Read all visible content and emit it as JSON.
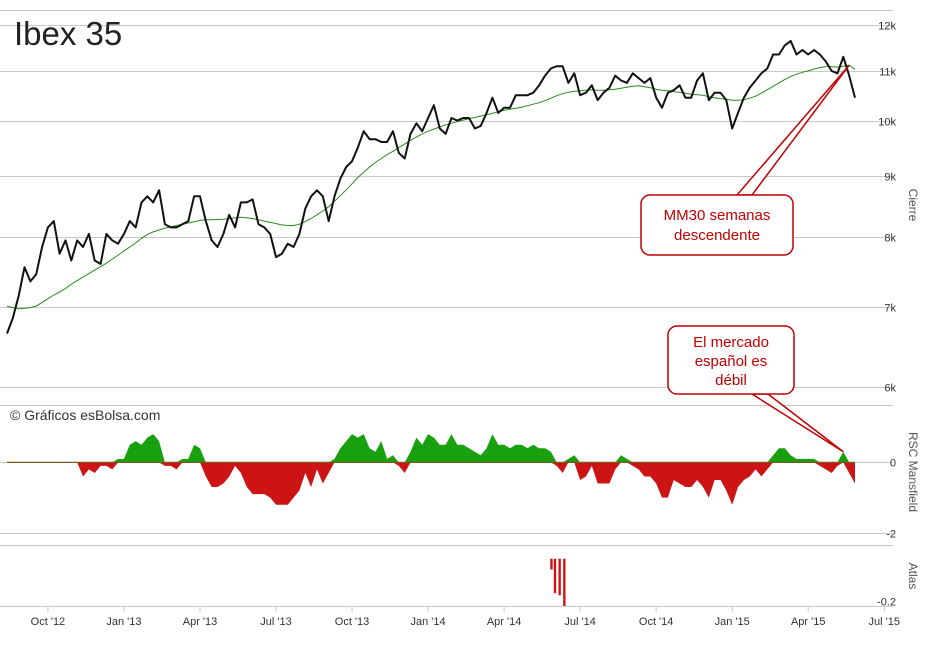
{
  "title": "Ibex 35",
  "credit": "© Gráficos esBolsa.com",
  "colors": {
    "price": "#111111",
    "ma": "#2a8a1e",
    "positive": "#19a00f",
    "negative": "#cc1414",
    "atlas": "#cc1414",
    "grid": "#c8c8c8",
    "annotation": "#c00000",
    "axis_text": "#555555"
  },
  "annotations": [
    {
      "text_lines": [
        "MM30 semanas",
        "descendente"
      ]
    },
    {
      "text_lines": [
        "El mercado",
        "español es",
        "débil"
      ]
    }
  ],
  "chart_data": [
    {
      "type": "line",
      "panel": "price",
      "ylabel": "Cierre",
      "scale": "log",
      "ylim": [
        5800,
        12600
      ],
      "yticks": [
        6000,
        7000,
        8000,
        9000,
        10000,
        11000,
        12000
      ],
      "ytick_labels": [
        "6k",
        "7k",
        "8k",
        "9k",
        "10k",
        "11k",
        "12k"
      ],
      "x_labels": [
        "Oct '12",
        "Jan '13",
        "Apr '13",
        "Jul '13",
        "Oct '13",
        "Jan '14",
        "Apr '14",
        "Jul '14",
        "Oct '14",
        "Jan '15",
        "Apr '15",
        "Jul '15"
      ],
      "x_label_weeks": [
        7,
        20,
        33,
        46,
        59,
        72,
        85,
        98,
        111,
        124,
        137,
        150
      ],
      "series": [
        {
          "role": "price",
          "values": [
            6650,
            6850,
            7150,
            7550,
            7350,
            7450,
            7850,
            8150,
            8250,
            7750,
            7950,
            7650,
            7950,
            7850,
            8050,
            7650,
            7600,
            8050,
            7950,
            7900,
            8050,
            8250,
            8150,
            8550,
            8650,
            8550,
            8750,
            8200,
            8150,
            8150,
            8200,
            8250,
            8650,
            8650,
            8250,
            7950,
            7850,
            8050,
            8350,
            8150,
            8550,
            8550,
            8600,
            8200,
            8150,
            8050,
            7700,
            7750,
            7900,
            7850,
            8050,
            8450,
            8650,
            8750,
            8650,
            8250,
            8650,
            8950,
            9150,
            9250,
            9500,
            9800,
            9650,
            9650,
            9600,
            9600,
            9800,
            9400,
            9300,
            9750,
            9950,
            9800,
            10050,
            10300,
            9850,
            9750,
            10050,
            10000,
            10050,
            10050,
            9850,
            9900,
            10150,
            10450,
            10150,
            10250,
            10250,
            10500,
            10500,
            10500,
            10550,
            10700,
            10900,
            11050,
            11100,
            11100,
            10750,
            10950,
            10500,
            10550,
            10700,
            10400,
            10550,
            10650,
            10900,
            10800,
            10750,
            10950,
            10850,
            10750,
            10850,
            10450,
            10250,
            10550,
            10600,
            10700,
            10450,
            10450,
            10800,
            10950,
            10400,
            10550,
            10550,
            10400,
            9850,
            10150,
            10450,
            10650,
            10800,
            10950,
            11050,
            11350,
            11350,
            11550,
            11650,
            11350,
            11450,
            11350,
            11450,
            11350,
            11200,
            11000,
            10950,
            11300,
            10900,
            10450
          ]
        },
        {
          "role": "ma30",
          "values": [
            7010,
            6990,
            6975,
            6980,
            6990,
            7010,
            7060,
            7110,
            7160,
            7200,
            7250,
            7310,
            7360,
            7410,
            7460,
            7510,
            7560,
            7610,
            7670,
            7730,
            7790,
            7850,
            7910,
            7980,
            8040,
            8080,
            8110,
            8140,
            8160,
            8180,
            8200,
            8220,
            8240,
            8260,
            8270,
            8270,
            8275,
            8280,
            8290,
            8300,
            8310,
            8300,
            8290,
            8270,
            8250,
            8230,
            8210,
            8190,
            8180,
            8180,
            8200,
            8240,
            8290,
            8350,
            8410,
            8480,
            8570,
            8660,
            8760,
            8860,
            8970,
            9060,
            9150,
            9230,
            9300,
            9370,
            9430,
            9500,
            9560,
            9630,
            9690,
            9750,
            9800,
            9840,
            9880,
            9920,
            9950,
            9980,
            10010,
            10040,
            10060,
            10090,
            10110,
            10140,
            10170,
            10200,
            10220,
            10240,
            10260,
            10290,
            10320,
            10350,
            10390,
            10440,
            10490,
            10530,
            10560,
            10580,
            10590,
            10600,
            10610,
            10600,
            10600,
            10610,
            10620,
            10640,
            10660,
            10680,
            10690,
            10670,
            10650,
            10620,
            10600,
            10590,
            10570,
            10560,
            10540,
            10520,
            10510,
            10500,
            10470,
            10450,
            10430,
            10420,
            10400,
            10400,
            10410,
            10440,
            10480,
            10540,
            10610,
            10680,
            10750,
            10820,
            10880,
            10930,
            10970,
            11000,
            11040,
            11070,
            11090,
            11090,
            11080,
            11100,
            11120,
            11030
          ]
        }
      ]
    },
    {
      "type": "area",
      "panel": "rsc",
      "ylabel": "RSC Mansfield",
      "ylim": [
        -2.2,
        1.2
      ],
      "yticks": [
        0,
        -2
      ],
      "ytick_labels": [
        "0",
        "-2"
      ],
      "values": [
        0,
        0,
        0,
        0,
        0,
        0,
        0,
        0,
        0,
        0,
        0,
        0,
        0,
        -0.4,
        -0.2,
        -0.3,
        -0.1,
        -0.1,
        -0.2,
        0.1,
        0.1,
        0.5,
        0.6,
        0.5,
        0.7,
        0.8,
        0.6,
        -0.1,
        -0.1,
        -0.2,
        0.1,
        0.1,
        0.5,
        0.4,
        -0.4,
        -0.7,
        -0.7,
        -0.6,
        -0.4,
        -0.1,
        -0.3,
        -0.7,
        -0.9,
        -0.9,
        -0.9,
        -1.0,
        -1.2,
        -1.2,
        -1.2,
        -1.0,
        -0.8,
        -0.3,
        -0.7,
        -0.2,
        -0.6,
        -0.3,
        0.1,
        0.4,
        0.6,
        0.8,
        0.7,
        0.8,
        0.4,
        0.3,
        0.6,
        0.1,
        0.2,
        -0.1,
        -0.3,
        0.3,
        0.7,
        0.5,
        0.8,
        0.7,
        0.5,
        0.5,
        0.8,
        0.5,
        0.5,
        0.4,
        0.3,
        0.2,
        0.4,
        0.8,
        0.5,
        0.5,
        0.4,
        0.5,
        0.5,
        0.4,
        0.5,
        0.4,
        0.4,
        0.3,
        -0.1,
        -0.3,
        0.1,
        0.2,
        -0.5,
        -0.4,
        -0.1,
        -0.6,
        -0.6,
        -0.6,
        -0.2,
        0.2,
        0.1,
        -0.1,
        -0.2,
        -0.4,
        -0.4,
        -0.6,
        -1.0,
        -1.0,
        -0.5,
        -0.6,
        -0.7,
        -0.7,
        -0.5,
        -0.7,
        -1.0,
        -0.5,
        -0.5,
        -0.8,
        -1.2,
        -0.7,
        -0.5,
        -0.4,
        -0.2,
        -0.4,
        -0.2,
        0.2,
        0.4,
        0.4,
        0.2,
        0.1,
        0.1,
        0.1,
        0.1,
        -0.1,
        -0.2,
        -0.3,
        -0.1,
        0.3,
        -0.3,
        -0.6
      ]
    },
    {
      "type": "bar",
      "panel": "atlas",
      "ylabel": "Atlas",
      "ylim": [
        -0.22,
        0.05
      ],
      "yticks": [
        -0.2
      ],
      "ytick_labels": [
        "-0.2"
      ],
      "bars": [
        {
          "week": 93.1,
          "value": -0.05
        },
        {
          "week": 93.7,
          "value": -0.16
        },
        {
          "week": 94.5,
          "value": -0.17
        },
        {
          "week": 95.3,
          "value": -0.22
        }
      ]
    }
  ]
}
